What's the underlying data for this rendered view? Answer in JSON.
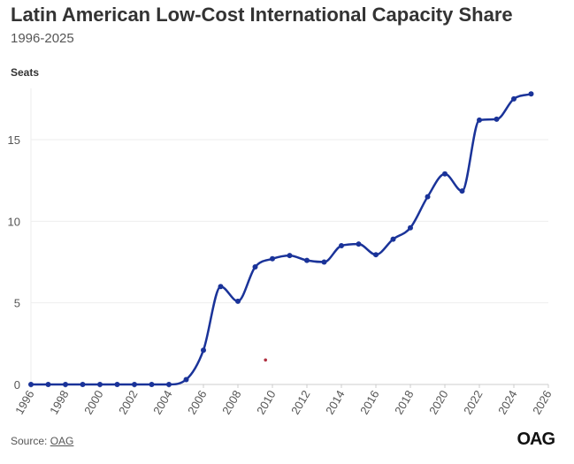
{
  "chart_data": {
    "type": "line",
    "title": "Latin American Low-Cost International Capacity Share",
    "subtitle": "1996-2025",
    "ylabel": "Seats",
    "xlabel": "",
    "xlim": [
      1996,
      2026
    ],
    "ylim": [
      0,
      18
    ],
    "yticks": [
      0,
      5,
      10,
      15
    ],
    "xticks": [
      1996,
      1998,
      2000,
      2002,
      2004,
      2006,
      2008,
      2010,
      2012,
      2014,
      2016,
      2018,
      2020,
      2022,
      2024,
      2026
    ],
    "grid": true,
    "line_color": "#1a3399",
    "x": [
      1996,
      1997,
      1998,
      1999,
      2000,
      2001,
      2002,
      2003,
      2004,
      2005,
      2006,
      2007,
      2008,
      2009,
      2010,
      2011,
      2012,
      2013,
      2014,
      2015,
      2016,
      2017,
      2018,
      2019,
      2020,
      2021,
      2022,
      2023,
      2024,
      2025
    ],
    "values": [
      0,
      0,
      0,
      0,
      0,
      0,
      0,
      0,
      0,
      0.3,
      2.1,
      6.0,
      5.1,
      7.2,
      7.7,
      7.9,
      7.6,
      7.5,
      8.5,
      8.6,
      7.95,
      8.9,
      9.6,
      11.5,
      12.9,
      11.85,
      16.2,
      16.25,
      17.5,
      17.8
    ],
    "stray_mark": {
      "x": 2009.6,
      "y": 1.5,
      "color": "#b03040"
    }
  },
  "footer": {
    "source_prefix": "Source: ",
    "source_link": "OAG",
    "logo": "OAG"
  }
}
